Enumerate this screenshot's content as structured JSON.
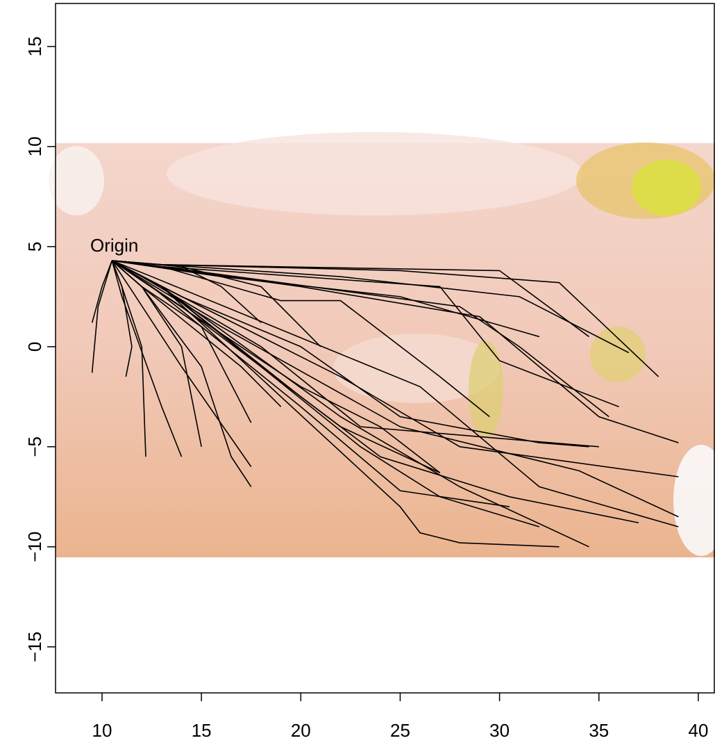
{
  "chart_data": {
    "type": "line",
    "annotation": "Origin",
    "color": "#000000",
    "xlim": [
      7.66,
      40.84
    ],
    "ylim": [
      -17.3,
      17.15
    ],
    "xticks": [
      10,
      15,
      20,
      25,
      30,
      35,
      40
    ],
    "yticks": [
      {
        "value": -15,
        "label": "−15"
      },
      {
        "value": -10,
        "label": "−10"
      },
      {
        "value": -5,
        "label": "−5"
      },
      0,
      5,
      10,
      15
    ],
    "series": [
      {
        "x": [
          10.5,
          13,
          25,
          33,
          38
        ],
        "y": [
          4.3,
          4.1,
          3.8,
          3.2,
          -1.5
        ]
      },
      {
        "x": [
          10.5,
          13,
          30,
          34.5
        ],
        "y": [
          4.3,
          4.1,
          3.8,
          0.5
        ]
      },
      {
        "x": [
          10.5,
          13,
          22,
          31,
          36.5
        ],
        "y": [
          4.3,
          4.1,
          3.5,
          2.5,
          -0.3
        ]
      },
      {
        "x": [
          10.5,
          14,
          18,
          21
        ],
        "y": [
          4.3,
          4,
          3,
          0
        ]
      },
      {
        "x": [
          10.5,
          14,
          16,
          18
        ],
        "y": [
          4.3,
          4,
          3,
          1.2
        ]
      },
      {
        "x": [
          10.5,
          13,
          19,
          22,
          27,
          29.5
        ],
        "y": [
          4.3,
          4,
          2.3,
          2.3,
          -1.5,
          -3.5
        ]
      },
      {
        "x": [
          10.5,
          16,
          25,
          32
        ],
        "y": [
          4.3,
          3.5,
          2.5,
          0.5
        ]
      },
      {
        "x": [
          10.5,
          20,
          29,
          35,
          39
        ],
        "y": [
          4.3,
          3,
          1.5,
          -3.5,
          -4.8
        ]
      },
      {
        "x": [
          10.5,
          12,
          18,
          23,
          35
        ],
        "y": [
          4.3,
          3.5,
          0,
          -4,
          -5
        ]
      },
      {
        "x": [
          10.5,
          12,
          20,
          24,
          27
        ],
        "y": [
          4.3,
          3.3,
          -2,
          -4,
          -6.3
        ]
      },
      {
        "x": [
          10.5,
          12,
          17,
          19
        ],
        "y": [
          4.3,
          3,
          -1,
          -3
        ]
      },
      {
        "x": [
          10.5,
          11.5,
          14,
          17.5
        ],
        "y": [
          4.3,
          2.8,
          -1,
          -6
        ]
      },
      {
        "x": [
          10.5,
          11,
          13,
          14
        ],
        "y": [
          4.3,
          2.5,
          -3,
          -5.5
        ]
      },
      {
        "x": [
          10.5,
          11,
          12,
          12.2
        ],
        "y": [
          4.3,
          3,
          0,
          -5.5
        ]
      },
      {
        "x": [
          10.5,
          11,
          11.5,
          11.2
        ],
        "y": [
          4.3,
          3,
          0,
          -1.5
        ]
      },
      {
        "x": [
          10.5,
          9.8,
          9.5
        ],
        "y": [
          4.3,
          2,
          -1.3
        ]
      },
      {
        "x": [
          10.5,
          10,
          9.5
        ],
        "y": [
          4.3,
          3,
          1.2
        ]
      },
      {
        "x": [
          10.5,
          12,
          15,
          16.5,
          17.5
        ],
        "y": [
          4.3,
          3,
          -1,
          -5.5,
          -7
        ]
      },
      {
        "x": [
          10.5,
          12,
          14,
          15
        ],
        "y": [
          4.3,
          3,
          0,
          -5
        ]
      },
      {
        "x": [
          10.5,
          12,
          15,
          17.5
        ],
        "y": [
          4.3,
          3,
          1,
          -3.8
        ]
      },
      {
        "x": [
          10.5,
          12.5,
          20,
          25,
          30.5
        ],
        "y": [
          4.3,
          3,
          -3,
          -7.2,
          -8
        ]
      },
      {
        "x": [
          10.5,
          13,
          20,
          24,
          30.5,
          37
        ],
        "y": [
          4.3,
          3,
          -2.5,
          -5.5,
          -7.5,
          -8.8
        ]
      },
      {
        "x": [
          10.5,
          13,
          23,
          27,
          32
        ],
        "y": [
          4.3,
          3,
          -5,
          -7.5,
          -9
        ]
      },
      {
        "x": [
          10.5,
          13,
          25,
          26,
          28,
          33
        ],
        "y": [
          4.3,
          3,
          -8,
          -9.3,
          -9.8,
          -10
        ]
      },
      {
        "x": [
          10.5,
          13,
          22,
          28,
          34.5
        ],
        "y": [
          4.3,
          3,
          -3.5,
          -7,
          -10
        ]
      },
      {
        "x": [
          10.5,
          14,
          20,
          25,
          32,
          34.5
        ],
        "y": [
          4.3,
          2.5,
          0,
          -3.5,
          -4.8,
          -5
        ]
      },
      {
        "x": [
          10.5,
          15,
          22,
          28,
          39
        ],
        "y": [
          4.3,
          2,
          -1.5,
          -5,
          -6.5
        ]
      },
      {
        "x": [
          10.5,
          16,
          25,
          34,
          39
        ],
        "y": [
          4.3,
          1,
          -4,
          -6.2,
          -8.5
        ]
      },
      {
        "x": [
          10.5,
          14,
          22,
          27
        ],
        "y": [
          4.3,
          2,
          -4,
          -6.3
        ]
      },
      {
        "x": [
          10.5,
          12.5,
          26,
          29,
          32,
          39
        ],
        "y": [
          4.3,
          3.5,
          -2,
          -4.5,
          -7,
          -9
        ]
      },
      {
        "x": [
          10.5,
          13,
          28,
          31,
          35.5
        ],
        "y": [
          4.3,
          4,
          2,
          0,
          -3.5
        ]
      },
      {
        "x": [
          10.5,
          13,
          27,
          30,
          36
        ],
        "y": [
          4.3,
          4,
          3,
          -0.7,
          -3
        ]
      }
    ]
  }
}
